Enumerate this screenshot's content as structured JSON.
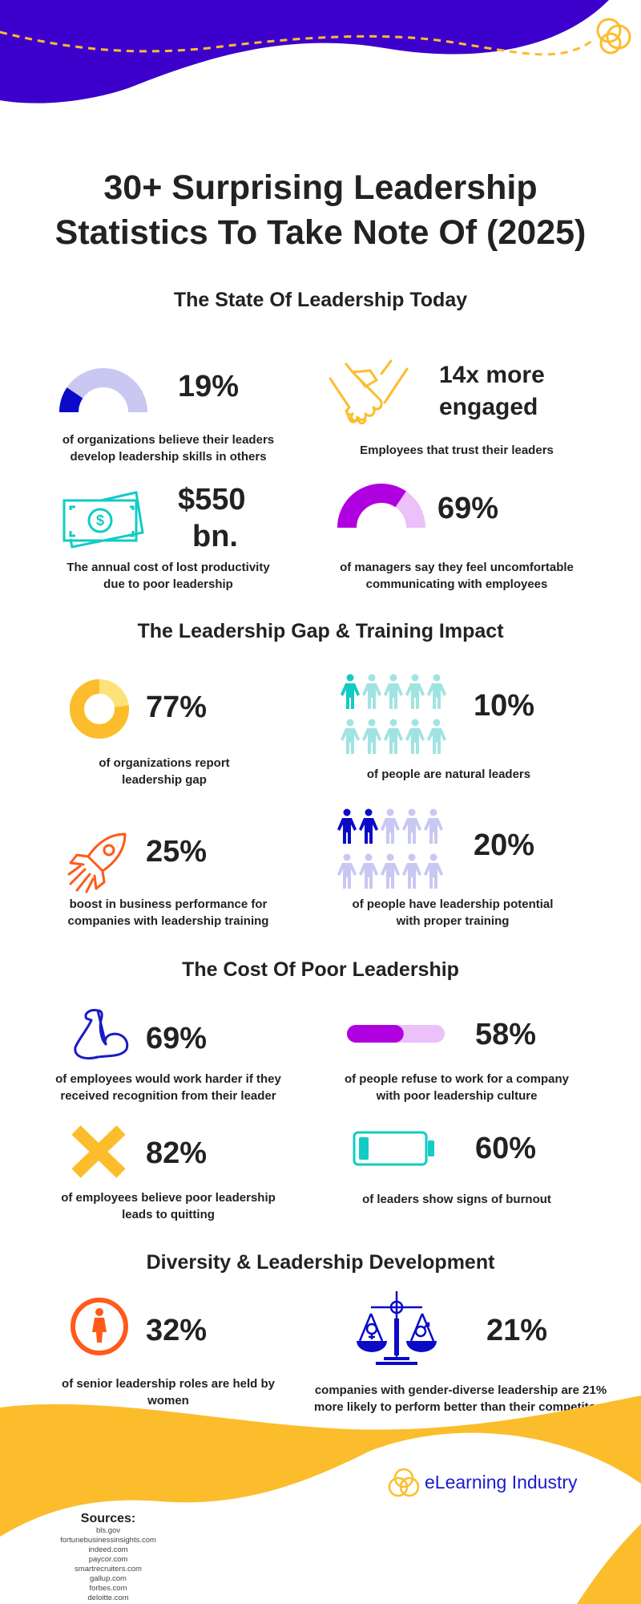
{
  "title": [
    "30+ Surprising Leadership",
    "Statistics To Take Note Of (2025)"
  ],
  "colors": {
    "purple_wave": "#3d00cc",
    "yellow": "#fcbd2c",
    "dark_blue": "#0a0ac8",
    "lavender": "#c8c8f2",
    "magenta": "#b000e0",
    "pink": "#ecc0f8",
    "teal": "#12cbc4",
    "light_teal": "#a0e4e2",
    "orange": "#ff5a1a",
    "text": "#222222"
  },
  "sections": [
    {
      "heading": "The State Of Leadership Today",
      "stats": [
        {
          "value": "19%",
          "caption": [
            "of organizations believe their leaders",
            "develop leadership skills in others"
          ],
          "icon": "half-gauge-icon",
          "gauge_percent": 19
        },
        {
          "value": [
            "14x more",
            "engaged"
          ],
          "caption": [
            "Employees that trust their leaders"
          ],
          "icon": "handshake-icon"
        },
        {
          "value": [
            "$550",
            "bn."
          ],
          "caption": [
            "The annual cost of lost productivity",
            "due to poor leadership"
          ],
          "icon": "money-bill-icon"
        },
        {
          "value": "69%",
          "caption": [
            "of managers say they feel uncomfortable",
            "communicating with employees"
          ],
          "icon": "half-gauge-icon",
          "gauge_percent": 69
        }
      ]
    },
    {
      "heading": "The Leadership Gap & Training Impact",
      "stats": [
        {
          "value": "77%",
          "caption": [
            "of organizations report",
            "leadership gap"
          ],
          "icon": "donut-icon",
          "donut_percent": 77
        },
        {
          "value": "10%",
          "caption": [
            "of people are natural leaders"
          ],
          "icon": "people-icon",
          "people_total": 10,
          "people_highlighted": 1
        },
        {
          "value": "25%",
          "caption": [
            "boost in business performance for",
            "companies with leadership training"
          ],
          "icon": "rocket-icon"
        },
        {
          "value": "20%",
          "caption": [
            "of people have leadership potential",
            "with proper training"
          ],
          "icon": "people-icon",
          "people_total": 10,
          "people_highlighted": 2
        }
      ]
    },
    {
      "heading": "The Cost Of Poor Leadership",
      "stats": [
        {
          "value": "69%",
          "caption": [
            "of employees would work harder if they",
            "received recognition from their leader"
          ],
          "icon": "flexed-arm-icon"
        },
        {
          "value": "58%",
          "caption": [
            "of people refuse to work for a company",
            "with poor leadership culture"
          ],
          "icon": "progress-bar-icon",
          "bar_percent": 58
        },
        {
          "value": "82%",
          "caption": [
            "of employees believe poor leadership",
            "leads to quitting"
          ],
          "icon": "x-mark-icon"
        },
        {
          "value": "60%",
          "caption": [
            "of leaders show signs of burnout"
          ],
          "icon": "low-battery-icon"
        }
      ]
    },
    {
      "heading": "Diversity & Leadership Development",
      "stats": [
        {
          "value": "32%",
          "caption": [
            "of senior leadership roles are held by",
            "women"
          ],
          "icon": "woman-icon"
        },
        {
          "value": "21%",
          "caption": [
            "companies with gender-diverse leadership are 21%",
            "more likely to perform better than their competitors"
          ],
          "icon": "gender-scale-icon"
        }
      ]
    }
  ],
  "brand": {
    "name": "eLearning Industry"
  },
  "sources": {
    "label": "Sources:",
    "items": [
      "bls.gov",
      "fortunebusinessinsights.com",
      "indeed.com",
      "paycor.com",
      "smartrecruiters.com",
      "gallup.com",
      "forbes.com",
      "deloitte.com"
    ]
  }
}
